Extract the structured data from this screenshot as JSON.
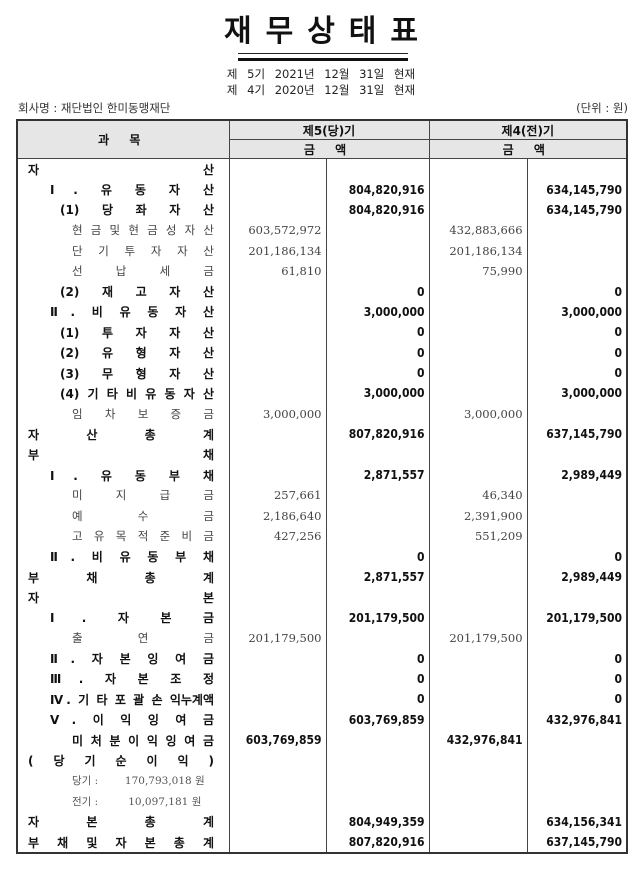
{
  "title": "재무상태표",
  "periods": [
    "제 5기 2021년 12월 31일 현재",
    "제 4기 2020년 12월 31일 현재"
  ],
  "company": "회사명 : 재단법인 한미동맹재단",
  "unit": "(단위 : 원)",
  "headers": {
    "subject": "과 목",
    "current": "제5(당)기",
    "prior": "제4(전)기",
    "amount": "금 액"
  },
  "rows": [
    {
      "label": "자 산",
      "lv": 0,
      "t": "b",
      "a": "",
      "b": "",
      "c": "",
      "d": ""
    },
    {
      "label": "Ⅰ. 유 동 자 산",
      "lv": 1,
      "t": "b",
      "a": "",
      "b": "804,820,916",
      "c": "",
      "d": "634,145,790"
    },
    {
      "label": "(1) 당 좌 자 산",
      "lv": 2,
      "t": "b",
      "a": "",
      "b": "804,820,916",
      "c": "",
      "d": "634,145,790"
    },
    {
      "label": "현 금 및 현 금 성 자 산",
      "lv": 3,
      "t": "n",
      "a": "603,572,972",
      "b": "",
      "c": "432,883,666",
      "d": ""
    },
    {
      "label": "단 기 투 자 자 산",
      "lv": 3,
      "t": "n",
      "a": "201,186,134",
      "b": "",
      "c": "201,186,134",
      "d": ""
    },
    {
      "label": "선 납 세 금",
      "lv": 3,
      "t": "n",
      "a": "61,810",
      "b": "",
      "c": "75,990",
      "d": ""
    },
    {
      "label": "(2) 재 고 자 산",
      "lv": 2,
      "t": "b",
      "a": "",
      "b": "0",
      "c": "",
      "d": "0"
    },
    {
      "label": "Ⅱ. 비 유 동 자 산",
      "lv": 1,
      "t": "b",
      "a": "",
      "b": "3,000,000",
      "c": "",
      "d": "3,000,000"
    },
    {
      "label": "(1) 투 자 자 산",
      "lv": 2,
      "t": "b",
      "a": "",
      "b": "0",
      "c": "",
      "d": "0"
    },
    {
      "label": "(2) 유 형 자 산",
      "lv": 2,
      "t": "b",
      "a": "",
      "b": "0",
      "c": "",
      "d": "0"
    },
    {
      "label": "(3) 무 형 자 산",
      "lv": 2,
      "t": "b",
      "a": "",
      "b": "0",
      "c": "",
      "d": "0"
    },
    {
      "label": "(4) 기 타 비 유 동 자 산",
      "lv": 2,
      "t": "b",
      "a": "",
      "b": "3,000,000",
      "c": "",
      "d": "3,000,000"
    },
    {
      "label": "임 차 보 증 금",
      "lv": 3,
      "t": "n",
      "a": "3,000,000",
      "b": "",
      "c": "3,000,000",
      "d": ""
    },
    {
      "label": "자 산 총 계",
      "lv": 0,
      "t": "b",
      "a": "",
      "b": "807,820,916",
      "c": "",
      "d": "637,145,790"
    },
    {
      "label": "부 채",
      "lv": 0,
      "t": "b",
      "a": "",
      "b": "",
      "c": "",
      "d": ""
    },
    {
      "label": "Ⅰ. 유 동 부 채",
      "lv": 1,
      "t": "b",
      "a": "",
      "b": "2,871,557",
      "c": "",
      "d": "2,989,449"
    },
    {
      "label": "미 지 급 금",
      "lv": 3,
      "t": "n",
      "a": "257,661",
      "b": "",
      "c": "46,340",
      "d": ""
    },
    {
      "label": "예 수 금",
      "lv": 3,
      "t": "n",
      "a": "2,186,640",
      "b": "",
      "c": "2,391,900",
      "d": ""
    },
    {
      "label": "고 유 목 적 준 비 금",
      "lv": 3,
      "t": "n",
      "a": "427,256",
      "b": "",
      "c": "551,209",
      "d": ""
    },
    {
      "label": "Ⅱ. 비 유 동 부 채",
      "lv": 1,
      "t": "b",
      "a": "",
      "b": "0",
      "c": "",
      "d": "0"
    },
    {
      "label": "부 채 총 계",
      "lv": 0,
      "t": "b",
      "a": "",
      "b": "2,871,557",
      "c": "",
      "d": "2,989,449"
    },
    {
      "label": "자 본",
      "lv": 0,
      "t": "b",
      "a": "",
      "b": "",
      "c": "",
      "d": ""
    },
    {
      "label": "Ⅰ. 자 본 금",
      "lv": 1,
      "t": "b",
      "a": "",
      "b": "201,179,500",
      "c": "",
      "d": "201,179,500"
    },
    {
      "label": "출 연 금",
      "lv": 3,
      "t": "n",
      "a": "201,179,500",
      "b": "",
      "c": "201,179,500",
      "d": ""
    },
    {
      "label": "Ⅱ. 자 본 잉 여 금",
      "lv": 1,
      "t": "b",
      "a": "",
      "b": "0",
      "c": "",
      "d": "0"
    },
    {
      "label": "Ⅲ. 자 본 조 정",
      "lv": 1,
      "t": "b",
      "a": "",
      "b": "0",
      "c": "",
      "d": "0"
    },
    {
      "label": "Ⅳ. 기 타 포 괄 손 익누계액",
      "lv": 1,
      "t": "b",
      "a": "",
      "b": "0",
      "c": "",
      "d": "0"
    },
    {
      "label": "Ⅴ. 이 익 잉 여 금",
      "lv": 1,
      "t": "b",
      "a": "",
      "b": "603,769,859",
      "c": "",
      "d": "432,976,841"
    },
    {
      "label": "미 처 분 이 익 잉 여 금",
      "lv": 3,
      "t": "b",
      "a": "603,769,859",
      "b": "",
      "c": "432,976,841",
      "d": ""
    },
    {
      "label": "( 당 기 순 이 익 )",
      "lv": 0,
      "t": "b",
      "a": "",
      "b": "",
      "c": "",
      "d": ""
    },
    {
      "label": "당기 :        170,793,018 원",
      "lv": 3,
      "t": "s",
      "a": "",
      "b": "",
      "c": "",
      "d": ""
    },
    {
      "label": "전기 :         10,097,181 원",
      "lv": 3,
      "t": "s",
      "a": "",
      "b": "",
      "c": "",
      "d": ""
    },
    {
      "label": "자 본 총 계",
      "lv": 0,
      "t": "b",
      "a": "",
      "b": "804,949,359",
      "c": "",
      "d": "634,156,341"
    },
    {
      "label": "부 채 및 자 본 총 계",
      "lv": 0,
      "t": "b",
      "a": "",
      "b": "807,820,916",
      "c": "",
      "d": "637,145,790"
    }
  ]
}
